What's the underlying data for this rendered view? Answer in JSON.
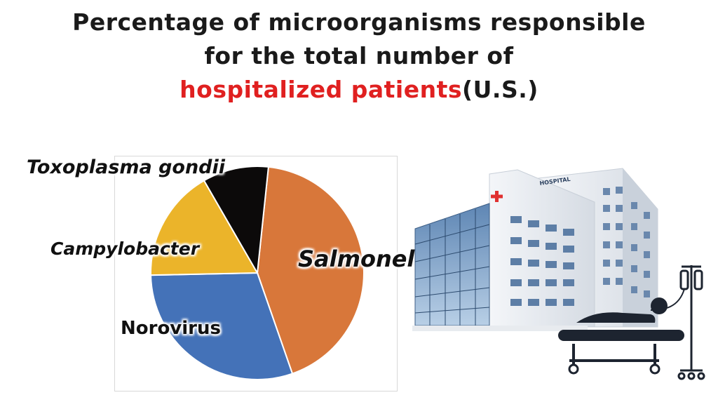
{
  "title": {
    "line1": "Percentage of microorganisms responsible",
    "line2": "for the total number of",
    "line3_highlight": "hospitalized patients",
    "line3_rest": "(U.S.)",
    "highlight_color": "#e02020"
  },
  "chart_data": {
    "type": "pie",
    "title": "Percentage of microorganisms responsible for the total number of hospitalized patients(U.S.)",
    "slices": [
      {
        "label": "Salmonella",
        "value": 43,
        "color": "#d8773a"
      },
      {
        "label": "Norovirus",
        "value": 30,
        "color": "#4472b8"
      },
      {
        "label": "Campylobacter",
        "value": 17,
        "color": "#ebb42a"
      },
      {
        "label": "Toxoplasma gondii",
        "value": 10,
        "color": "#0c0a0a"
      }
    ]
  },
  "illustration": {
    "sign_text": "HOSPITAL",
    "icons": [
      "hospital-building-icon",
      "hospital-bed-patient-icon",
      "iv-drip-stand-icon"
    ]
  }
}
